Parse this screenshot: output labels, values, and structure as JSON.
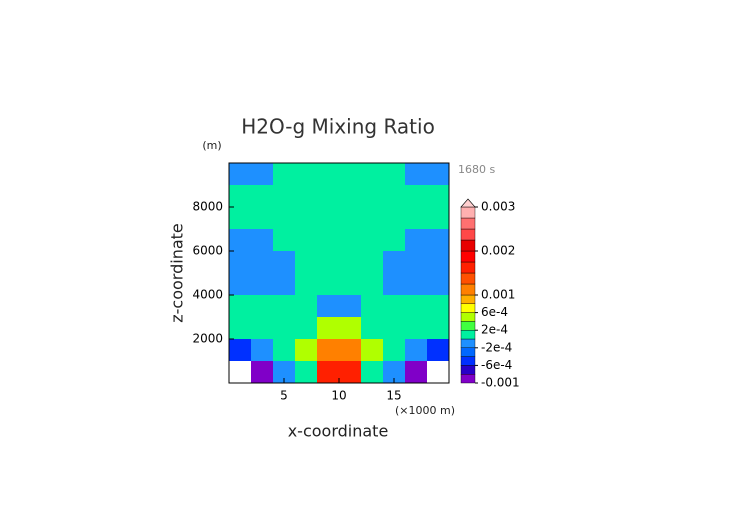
{
  "chart_data": {
    "type": "contour",
    "title": "H2O-g Mixing Ratio",
    "y_unit": "(m)",
    "time_label": "1680 s",
    "x_unit": "(×1000 m)",
    "x_label": "x-coordinate",
    "y_label": "z-coordinate",
    "xlim": [
      0,
      20
    ],
    "xticks": [
      5,
      10,
      15
    ],
    "ylim": [
      0,
      10000
    ],
    "yticks": [
      2000,
      4000,
      6000,
      8000
    ],
    "x": [
      1,
      3,
      5,
      7,
      9,
      11,
      13,
      15,
      17,
      19
    ],
    "z": [
      9500,
      8500,
      7500,
      6500,
      5500,
      4500,
      3500,
      2500,
      1500,
      500
    ],
    "values": [
      [
        -0.0001,
        -0.0001,
        0.0001,
        0.0001,
        0.0001,
        0.0001,
        0.0001,
        0.0001,
        -0.0001,
        -0.0001
      ],
      [
        0.0001,
        0.0001,
        0.0001,
        0.0001,
        0.0001,
        0.0001,
        0.0001,
        0.0001,
        0.0001,
        0.0001
      ],
      [
        0.0001,
        0.0001,
        0.0001,
        0.0001,
        0.0001,
        0.0001,
        0.0001,
        0.0001,
        0.0001,
        0.0001
      ],
      [
        -0.0001,
        -0.0001,
        0.0001,
        0.0001,
        0.0001,
        0.0001,
        0.0001,
        0.0001,
        -0.0001,
        -0.0001
      ],
      [
        -0.0001,
        -0.0001,
        -0.0001,
        0.0001,
        0.0001,
        0.0001,
        0.0001,
        -0.0001,
        -0.0001,
        -0.0001
      ],
      [
        -0.0001,
        -0.0001,
        -0.0001,
        0.0001,
        0.0001,
        0.0001,
        0.0001,
        -0.0001,
        -0.0001,
        -0.0001
      ],
      [
        0.0001,
        0.0001,
        0.0001,
        0.0001,
        -0.0001,
        -0.0001,
        0.0001,
        0.0001,
        0.0001,
        0.0001
      ],
      [
        0.0001,
        0.0001,
        0.0001,
        0.0001,
        0.0005,
        0.0005,
        0.0001,
        0.0001,
        0.0001,
        0.0001
      ],
      [
        -0.0005,
        -0.0001,
        0.0001,
        0.0005,
        0.0011,
        0.0011,
        0.0005,
        0.0001,
        -0.0001,
        -0.0005
      ],
      [
        -0.0012,
        -0.0009,
        -0.0001,
        0.0001,
        0.0016,
        0.0016,
        0.0001,
        -0.0001,
        -0.0009,
        -0.0012
      ]
    ],
    "levels": [
      -0.001,
      -0.0008,
      -0.0006,
      -0.0004,
      -0.0002,
      0,
      0.0002,
      0.0004,
      0.0006,
      0.0008,
      0.001,
      0.00125,
      0.0015,
      0.00175,
      0.002,
      0.00225,
      0.0025,
      0.00275,
      0.003
    ],
    "colors": [
      "#8000c8",
      "#2800c8",
      "#0030ff",
      "#0068ff",
      "#1e90ff",
      "#00f0a0",
      "#40ff40",
      "#b0ff00",
      "#ffff00",
      "#ffb000",
      "#ff8000",
      "#ff5000",
      "#ff2000",
      "#ff0000",
      "#e80000",
      "#ff4848",
      "#ff7070",
      "#ffb0b0"
    ],
    "below_color": "#ffffff",
    "above_color": "#ffd0d0",
    "cbar_lim": [
      -0.001,
      0.003
    ],
    "cbar_ticks": [
      0.003,
      0.002,
      0.001,
      {
        "value": 0.0006,
        "label": "6e-4"
      },
      {
        "value": 0.0002,
        "label": "2e-4"
      },
      {
        "value": -0.0002,
        "label": "-2e-4"
      },
      {
        "value": -0.0006,
        "label": "-6e-4"
      },
      -0.001
    ]
  }
}
